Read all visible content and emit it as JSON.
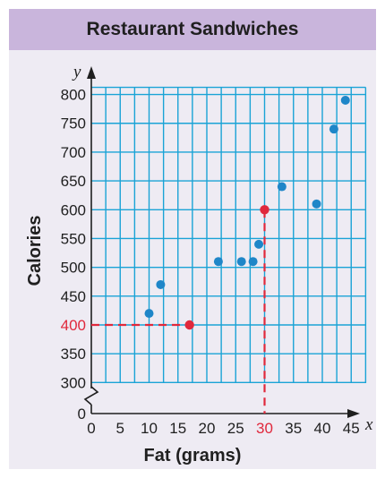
{
  "chart_data": {
    "type": "scatter",
    "title": "Restaurant Sandwiches",
    "xlabel": "Fat (grams)",
    "ylabel": "Calories",
    "x_axis_var": "x",
    "y_axis_var": "y",
    "xlim": [
      0,
      47.5
    ],
    "ylim": [
      250,
      812.5
    ],
    "y_axis_break": true,
    "x_ticks": [
      "0",
      "5",
      "10",
      "15",
      "20",
      "25",
      "30",
      "35",
      "40",
      "45"
    ],
    "y_ticks": [
      "0",
      "300",
      "350",
      "400",
      "450",
      "500",
      "550",
      "600",
      "650",
      "700",
      "750",
      "800"
    ],
    "grid": true,
    "points": [
      {
        "x": 10,
        "y": 420
      },
      {
        "x": 12,
        "y": 470
      },
      {
        "x": 22,
        "y": 510
      },
      {
        "x": 26,
        "y": 510
      },
      {
        "x": 28,
        "y": 510
      },
      {
        "x": 29,
        "y": 540
      },
      {
        "x": 33,
        "y": 640
      },
      {
        "x": 39,
        "y": 610
      },
      {
        "x": 42,
        "y": 740
      },
      {
        "x": 44,
        "y": 790
      }
    ],
    "highlighted_points": [
      {
        "x": 17,
        "y": 400
      },
      {
        "x": 30,
        "y": 600
      }
    ],
    "highlight_labels": {
      "x": "30",
      "y": "400"
    },
    "colors": {
      "points": "#1f86c8",
      "highlight": "#e0283c",
      "grid": "#1aa3d6",
      "title_bar": "#c9b5dc",
      "background": "#eeebf3"
    }
  }
}
